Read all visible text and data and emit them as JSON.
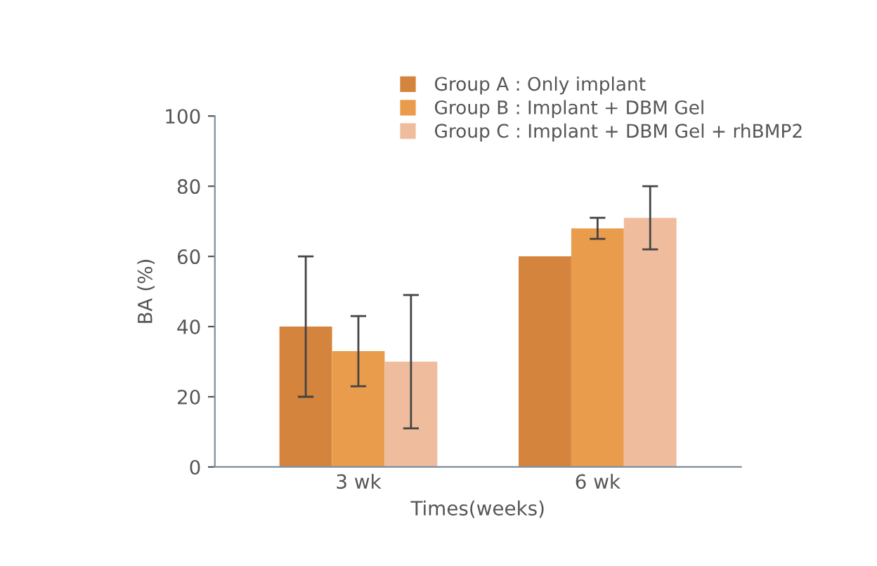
{
  "chart_data": {
    "type": "bar",
    "xlabel": "Times(weeks)",
    "ylabel": "BA (%)",
    "categories": [
      "3 wk",
      "6 wk"
    ],
    "series": [
      {
        "name": "Group A : Only implant",
        "color": "#d4843c",
        "values": [
          40,
          60
        ],
        "errors": [
          20,
          null
        ]
      },
      {
        "name": "Group B : Implant + DBM Gel",
        "color": "#e99c4c",
        "values": [
          33,
          68
        ],
        "errors": [
          10,
          3
        ]
      },
      {
        "name": "Group C : Implant + DBM Gel + rhBMP2",
        "color": "#efbc9e",
        "values": [
          30,
          71
        ],
        "errors": [
          19,
          9
        ]
      }
    ],
    "ylim": [
      0,
      100
    ],
    "yticks": [
      0,
      20,
      40,
      60,
      80,
      100
    ],
    "grid": false,
    "legend": "top right"
  }
}
